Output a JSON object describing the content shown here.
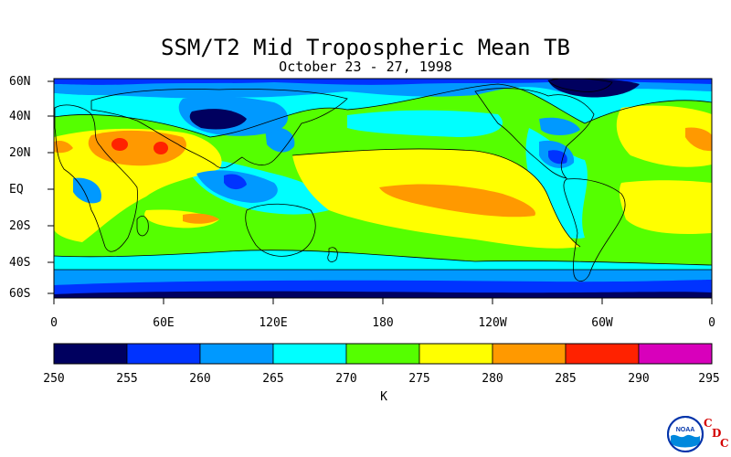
{
  "title": "SSM/T2 Mid Tropospheric Mean TB",
  "subtitle": "October 23 - 27, 1998",
  "lat_labels": [
    "60N",
    "40N",
    "20N",
    "EQ",
    "20S",
    "40S",
    "60S"
  ],
  "lon_labels": [
    "0",
    "60E",
    "120E",
    "180",
    "120W",
    "60W",
    "0"
  ],
  "colorbar": {
    "colors": [
      "#00005f",
      "#0033ff",
      "#0099ff",
      "#00ffff",
      "#55ff00",
      "#ffff00",
      "#ff9900",
      "#ff2200",
      "#d800bb"
    ],
    "labels": [
      "250",
      "255",
      "260",
      "265",
      "270",
      "275",
      "280",
      "285",
      "290",
      "295"
    ],
    "units": "K"
  },
  "logo": {
    "name": "NOAA",
    "cdc": [
      "C",
      "D",
      "C"
    ]
  }
}
